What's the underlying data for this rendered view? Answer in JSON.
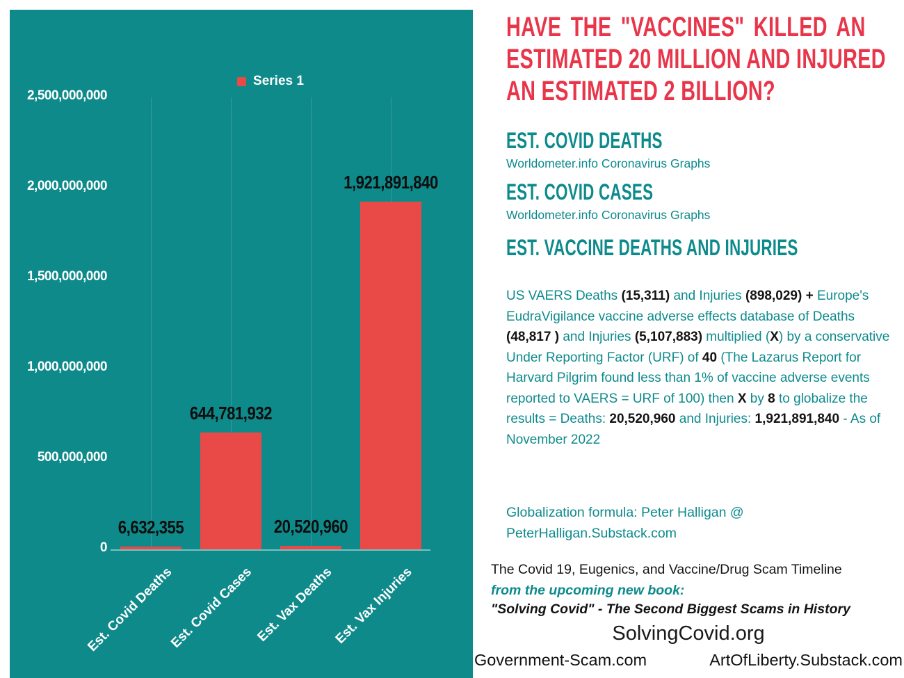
{
  "chart_data": {
    "type": "bar",
    "title": "",
    "legend": [
      "Series 1"
    ],
    "legend_position": "top-center",
    "categories": [
      "Est. Covid Deaths",
      "Est. Covid Cases",
      "Est. Vax Deaths",
      "Est. Vax Injuries"
    ],
    "values": [
      6632355,
      644781932,
      20520960,
      1921891840
    ],
    "value_labels": [
      "6,632,355",
      "644,781,932",
      "20,520,960",
      "1,921,891,840"
    ],
    "ylim": [
      0,
      2500000000
    ],
    "ytick_values": [
      0,
      500000000,
      1000000000,
      1500000000,
      2000000000,
      2500000000
    ],
    "ytick_labels": [
      "0",
      "500,000,000",
      "1,000,000,000",
      "1,500,000,000",
      "2,000,000,000",
      "2,500,000,000"
    ],
    "grid": "faint vertical lines at category centers",
    "bar_color": "#ea4a47",
    "background_color": "#0e8a8b",
    "axis_text_color": "#ffffff",
    "value_label_color": "#0d0d0d"
  },
  "headline": {
    "lines": [
      "HAVE THE \"VACCINES\" KILLED AN",
      "ESTIMATED 20 MILLION AND INJURED",
      "AN ESTIMATED 2 BILLION?"
    ],
    "color": "#e8354a"
  },
  "sections": [
    {
      "heading": "EST. COVID DEATHS",
      "sub": "Worldometer.info Coronavirus Graphs"
    },
    {
      "heading": "EST. COVID CASES",
      "sub": "Worldometer.info Coronavirus Graphs"
    },
    {
      "heading": "EST. VACCINE DEATHS AND INJURIES"
    }
  ],
  "vaers_paragraph": {
    "segments": [
      {
        "s": "t",
        "t": "US VAERS  Deaths "
      },
      {
        "s": "b",
        "t": "(15,311)"
      },
      {
        "s": "t",
        "t": " and Injuries "
      },
      {
        "s": "b",
        "t": "(898,029)"
      },
      {
        "s": "t",
        "t": " "
      },
      {
        "s": "b",
        "t": "+"
      },
      {
        "s": "t",
        "t": " Europe's EudraVigilance vaccine adverse effects database of Deaths "
      },
      {
        "s": "b",
        "t": "(48,817 )"
      },
      {
        "s": "t",
        "t": " and Injuries "
      },
      {
        "s": "b",
        "t": "(5,107,883)"
      },
      {
        "s": "t",
        "t": "  multiplied ("
      },
      {
        "s": "b",
        "t": "X"
      },
      {
        "s": "t",
        "t": ") by a conservative Under Reporting Factor (URF) of "
      },
      {
        "s": "b",
        "t": "40"
      },
      {
        "s": "t",
        "t": " (The Lazarus Report for Harvard Pilgrim found less than 1% of vaccine adverse events reported to VAERS = URF of 100) then "
      },
      {
        "s": "b",
        "t": "X"
      },
      {
        "s": "t",
        "t": " by "
      },
      {
        "s": "b",
        "t": "8"
      },
      {
        "s": "t",
        "t": " to globalize the results = Deaths: "
      },
      {
        "s": "b",
        "t": "20,520,960"
      },
      {
        "s": "t",
        "t": "  and Injuries: "
      },
      {
        "s": "b",
        "t": "1,921,891,840"
      },
      {
        "s": "t",
        "t": " - As of November 2022"
      }
    ]
  },
  "globalization_note": "Globalization formula: Peter Halligan @ PeterHalligan.Substack.com",
  "footer": {
    "timeline_line": "The Covid 19, Eugenics, and Vaccine/Drug Scam Timeline",
    "book_line": "from the upcoming new book:",
    "book_title": "\"Solving Covid\" - The Second Biggest Scams in History",
    "site": "SolvingCovid.org",
    "links": [
      "Government-Scam.com",
      "ArtOfLiberty.Substack.com"
    ]
  },
  "colors": {
    "teal": "#0e8a8b",
    "teal_text": "#0d8a8c",
    "bar_red": "#ea4a47",
    "headline_red": "#e8354a",
    "black": "#131313"
  }
}
